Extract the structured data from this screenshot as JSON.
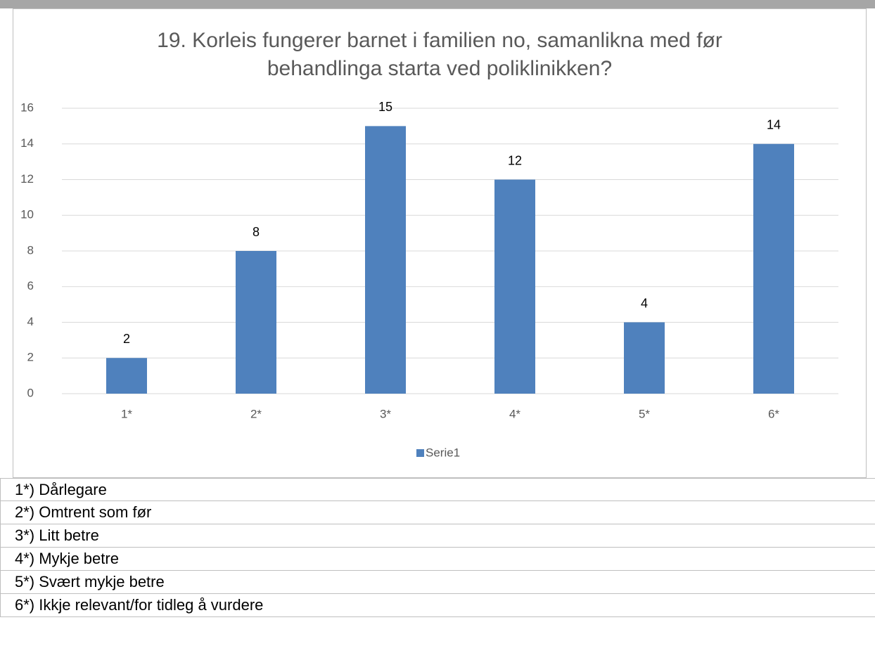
{
  "chart_data": {
    "type": "bar",
    "title": "19. Korleis fungerer barnet i familien no, samanlikna med før behandlinga starta ved poliklinikken?",
    "categories": [
      "1*",
      "2*",
      "3*",
      "4*",
      "5*",
      "6*"
    ],
    "series": [
      {
        "name": "Serie1",
        "color": "#4f81bd",
        "values": [
          2,
          8,
          15,
          12,
          4,
          14
        ]
      }
    ],
    "ylim": [
      0,
      16
    ],
    "yticks": [
      0,
      2,
      4,
      6,
      8,
      10,
      12,
      14,
      16
    ],
    "grid": true,
    "legend": "bottom"
  },
  "notes": [
    "1*) Dårlegare",
    "2*) Omtrent som før",
    "3*) Litt betre",
    "4*) Mykje betre",
    "5*) Svært mykje betre",
    "6*) Ikkje relevant/for tidleg å vurdere"
  ]
}
